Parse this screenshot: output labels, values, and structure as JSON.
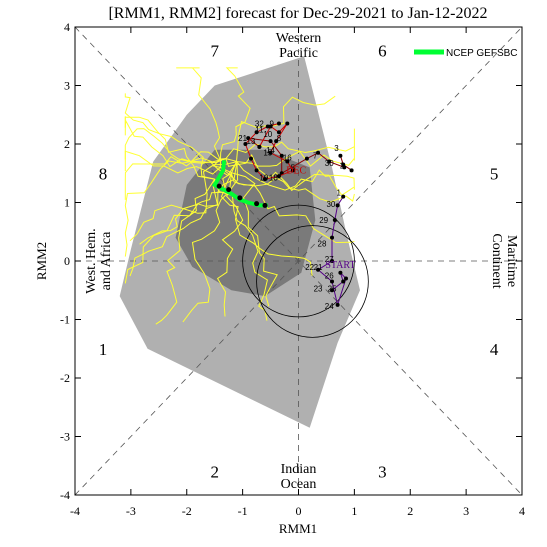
{
  "chart_data": {
    "type": "scatter",
    "title": "[RMM1, RMM2] forecast for Dec-29-2021 to Jan-12-2022",
    "xlabel": "RMM1",
    "ylabel": "RMM2",
    "xlim": [
      -4,
      4
    ],
    "ylim": [
      -4,
      4
    ],
    "x_ticks": [
      "-4",
      "-3",
      "-2",
      "-1",
      "0",
      "1",
      "2",
      "3",
      "4"
    ],
    "y_ticks": [
      "-4",
      "-3",
      "-2",
      "-1",
      "0",
      "1",
      "2",
      "3",
      "4"
    ],
    "phases": [
      {
        "number": "1",
        "x": -3.5,
        "y": -1.5
      },
      {
        "number": "2",
        "x": -1.5,
        "y": -3.6
      },
      {
        "number": "3",
        "x": 1.5,
        "y": -3.6
      },
      {
        "number": "4",
        "x": 3.5,
        "y": -1.5
      },
      {
        "number": "5",
        "x": 3.5,
        "y": 1.5
      },
      {
        "number": "6",
        "x": 1.5,
        "y": 3.6
      },
      {
        "number": "7",
        "x": -1.5,
        "y": 3.6
      },
      {
        "number": "8",
        "x": -3.5,
        "y": 1.5
      }
    ],
    "regions": {
      "western_pacific": [
        "Western",
        "Pacific"
      ],
      "indian_ocean": [
        "Indian",
        "Ocean"
      ],
      "west_hem": [
        "West. Hem.",
        "and Africa"
      ],
      "maritime": [
        "Maritime",
        "Continent"
      ]
    },
    "legend": {
      "label": "NCEP GEFSBC",
      "color": "#00ff33",
      "position": "top-right"
    },
    "labels": {
      "start": "START",
      "dec": "DEC"
    },
    "colors": {
      "outer_spread": "#b0b0b0",
      "inner_spread": "#7a7a7a",
      "members": "#ffff33",
      "ensemble_mean": "#00ff33",
      "observed_nov": "#8b0000",
      "observed_dec": "#cc0000",
      "observed_recent": "#550088"
    },
    "spread_outer": [
      [
        -3.2,
        -0.6
      ],
      [
        -3.0,
        0.2
      ],
      [
        -2.6,
        1.7
      ],
      [
        -2.0,
        2.5
      ],
      [
        -1.5,
        3.0
      ],
      [
        0.1,
        3.5
      ],
      [
        0.6,
        1.6
      ],
      [
        0.85,
        0.5
      ],
      [
        1.1,
        -0.5
      ],
      [
        0.7,
        -1.4
      ],
      [
        0.2,
        -2.85
      ],
      [
        -2.7,
        -1.5
      ]
    ],
    "spread_inner": [
      [
        -2.2,
        0.4
      ],
      [
        -2.0,
        1.3
      ],
      [
        -1.5,
        1.9
      ],
      [
        -0.6,
        1.9
      ],
      [
        0.2,
        1.6
      ],
      [
        0.3,
        0.7
      ],
      [
        0.05,
        -0.2
      ],
      [
        -0.6,
        -0.6
      ],
      [
        -1.2,
        -0.5
      ],
      [
        -1.9,
        -0.1
      ]
    ],
    "mean_forecast": [
      [
        -1.33,
        1.72
      ],
      [
        -1.35,
        1.55
      ],
      [
        -1.5,
        1.3
      ],
      [
        -1.2,
        1.15
      ],
      [
        -1.05,
        1.05
      ],
      [
        -0.9,
        1.0
      ],
      [
        -0.7,
        0.95
      ],
      [
        -0.55,
        0.95
      ]
    ],
    "obs_nov": {
      "points": [
        [
          0.95,
          1.55
        ],
        [
          0.8,
          1.65
        ],
        [
          0.75,
          1.8
        ],
        [
          0.82,
          1.6
        ],
        [
          0.55,
          1.7
        ],
        [
          0.35,
          1.85
        ],
        [
          0.15,
          1.75
        ],
        [
          -0.3,
          1.5
        ],
        [
          -0.3,
          1.8
        ],
        [
          -0.5,
          2.05
        ],
        [
          -0.9,
          2.1
        ],
        [
          -0.7,
          1.95
        ]
      ],
      "labels": [
        {
          "text": "3",
          "x": 0.68,
          "y": 1.88
        },
        {
          "text": "2",
          "x": 0.78,
          "y": 1.58
        },
        {
          "text": "30",
          "x": 0.55,
          "y": 1.62
        },
        {
          "text": "7",
          "x": 0.3,
          "y": 1.75
        }
      ]
    },
    "obs_dec": {
      "points": [
        [
          -0.7,
          1.95
        ],
        [
          -0.5,
          2.3
        ],
        [
          -0.35,
          2.2
        ],
        [
          -0.2,
          2.35
        ],
        [
          -0.4,
          2.05
        ],
        [
          -0.5,
          1.85
        ],
        [
          -0.2,
          1.7
        ],
        [
          -0.1,
          1.55
        ],
        [
          -0.35,
          1.45
        ],
        [
          -0.6,
          1.4
        ],
        [
          -0.75,
          1.55
        ],
        [
          -0.85,
          1.75
        ],
        [
          -0.95,
          2.0
        ],
        [
          -0.75,
          2.2
        ],
        [
          -0.55,
          2.3
        ],
        [
          -0.35,
          2.35
        ]
      ],
      "labels": [
        {
          "text": "9",
          "x": -0.48,
          "y": 2.3
        },
        {
          "text": "11",
          "x": -0.7,
          "y": 2.2
        },
        {
          "text": "10",
          "x": -0.55,
          "y": 2.12
        },
        {
          "text": "8",
          "x": -0.35,
          "y": 2.05
        },
        {
          "text": "13",
          "x": -0.85,
          "y": 2.0
        },
        {
          "text": "15",
          "x": -0.55,
          "y": 1.8
        },
        {
          "text": "14",
          "x": -0.5,
          "y": 1.85
        },
        {
          "text": "16",
          "x": -0.2,
          "y": 1.72
        },
        {
          "text": "5",
          "x": -0.1,
          "y": 1.55
        },
        {
          "text": "19",
          "x": -0.62,
          "y": 1.38
        },
        {
          "text": "18",
          "x": -0.45,
          "y": 1.38
        },
        {
          "text": "32",
          "x": -0.7,
          "y": 2.3
        },
        {
          "text": "21",
          "x": -1.0,
          "y": 2.05
        }
      ]
    },
    "obs_recent": {
      "points": [
        [
          0.8,
          1.1
        ],
        [
          0.7,
          0.95
        ],
        [
          0.65,
          0.7
        ],
        [
          0.6,
          0.4
        ],
        [
          0.6,
          0.0
        ],
        [
          0.35,
          -0.15
        ],
        [
          0.6,
          -0.35
        ],
        [
          0.7,
          -0.75
        ],
        [
          0.85,
          -0.3
        ],
        [
          0.75,
          -0.2
        ],
        [
          0.8,
          -0.35
        ],
        [
          0.6,
          -0.5
        ]
      ],
      "labels": [
        {
          "text": "1",
          "x": 0.72,
          "y": 1.12
        },
        {
          "text": "30",
          "x": 0.58,
          "y": 0.92
        },
        {
          "text": "29",
          "x": 0.45,
          "y": 0.65
        },
        {
          "text": "28",
          "x": 0.42,
          "y": 0.25
        },
        {
          "text": "27",
          "x": 0.55,
          "y": -0.02
        },
        {
          "text": "22",
          "x": 0.2,
          "y": -0.15
        },
        {
          "text": "21",
          "x": 0.35,
          "y": -0.15
        },
        {
          "text": "26",
          "x": 0.55,
          "y": -0.3
        },
        {
          "text": "23",
          "x": 0.35,
          "y": -0.52
        },
        {
          "text": "25",
          "x": 0.6,
          "y": -0.52
        },
        {
          "text": "24",
          "x": 0.55,
          "y": -0.82
        }
      ]
    },
    "green_marks": [
      [
        -1.42,
        1.28
      ],
      [
        -1.25,
        1.22
      ],
      [
        -1.05,
        1.08
      ],
      [
        -0.75,
        0.98
      ],
      [
        -0.6,
        0.95
      ]
    ],
    "current_circle": {
      "cx": 0.25,
      "cy": -0.35,
      "r": 1.0
    }
  }
}
